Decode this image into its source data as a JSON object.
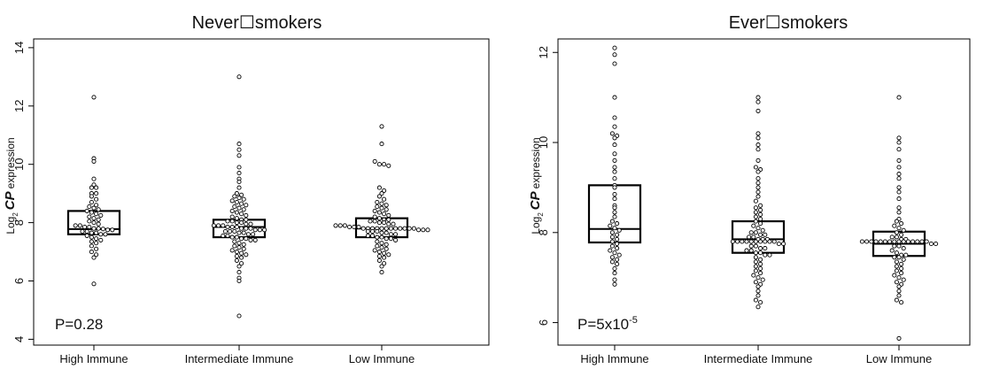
{
  "figure_name": "Beeswarm plots of gene expression by immune class",
  "colors": {
    "point_stroke": "#000000",
    "box_stroke": "#000000",
    "axis": "#000000"
  },
  "chart_data": [
    {
      "type": "scatter",
      "style": "beeswarm with box plot (median and interquartile range)",
      "title": "Never☐smokers",
      "ylabel_prefix": "Log",
      "ylabel_subscript": "2",
      "ylabel_gene": "CP",
      "ylabel_rest": "expression",
      "xlabel": "",
      "ylim": [
        3.8,
        14.3
      ],
      "yticks": [
        4,
        6,
        8,
        10,
        12,
        14
      ],
      "ytick_labels": [
        "4",
        "6",
        "8",
        "10",
        "12",
        "14"
      ],
      "categories": [
        "High Immune",
        "Intermediate Immune",
        "Low Immune"
      ],
      "pvalue_label": "P=0.28",
      "pvalue_sup": "",
      "grid": false,
      "groups": [
        {
          "name": "High Immune",
          "box": {
            "q1": 7.6,
            "median": 7.78,
            "q3": 8.4
          },
          "values": [
            12.3,
            10.2,
            10.1,
            9.5,
            9.3,
            9.2,
            9.2,
            9.0,
            9.0,
            8.9,
            8.8,
            8.7,
            8.6,
            8.55,
            8.5,
            8.45,
            8.4,
            8.35,
            8.3,
            8.25,
            8.2,
            8.15,
            8.1,
            8.05,
            8.0,
            7.95,
            7.9,
            7.9,
            7.85,
            7.85,
            7.8,
            7.8,
            7.78,
            7.75,
            7.75,
            7.7,
            7.7,
            7.65,
            7.65,
            7.6,
            7.6,
            7.55,
            7.5,
            7.45,
            7.4,
            7.35,
            7.3,
            7.2,
            7.1,
            7.0,
            6.9,
            6.8,
            5.9
          ]
        },
        {
          "name": "Intermediate Immune",
          "box": {
            "q1": 7.5,
            "median": 7.85,
            "q3": 8.1
          },
          "values": [
            13.0,
            10.7,
            10.5,
            10.3,
            9.9,
            9.7,
            9.5,
            9.4,
            9.2,
            9.0,
            8.95,
            8.9,
            8.85,
            8.8,
            8.75,
            8.7,
            8.65,
            8.6,
            8.55,
            8.5,
            8.45,
            8.4,
            8.35,
            8.3,
            8.25,
            8.2,
            8.15,
            8.1,
            8.1,
            8.05,
            8.05,
            8.0,
            8.0,
            7.95,
            7.95,
            7.9,
            7.9,
            7.9,
            7.85,
            7.85,
            7.85,
            7.8,
            7.8,
            7.8,
            7.75,
            7.75,
            7.75,
            7.7,
            7.7,
            7.7,
            7.65,
            7.65,
            7.6,
            7.6,
            7.55,
            7.55,
            7.5,
            7.5,
            7.45,
            7.45,
            7.4,
            7.4,
            7.35,
            7.3,
            7.25,
            7.2,
            7.15,
            7.1,
            7.05,
            7.0,
            6.95,
            6.9,
            6.85,
            6.8,
            6.7,
            6.6,
            6.5,
            6.3,
            6.1,
            6.0,
            4.8
          ]
        },
        {
          "name": "Low Immune",
          "box": {
            "q1": 7.5,
            "median": 7.8,
            "q3": 8.15
          },
          "values": [
            11.3,
            10.7,
            10.1,
            10.0,
            10.0,
            9.95,
            9.2,
            9.1,
            9.0,
            8.9,
            8.8,
            8.7,
            8.65,
            8.6,
            8.55,
            8.5,
            8.45,
            8.4,
            8.35,
            8.3,
            8.25,
            8.2,
            8.15,
            8.1,
            8.1,
            8.05,
            8.05,
            8.0,
            8.0,
            7.95,
            7.95,
            7.9,
            7.9,
            7.9,
            7.85,
            7.85,
            7.85,
            7.8,
            7.8,
            7.8,
            7.8,
            7.8,
            7.8,
            7.8,
            7.8,
            7.8,
            7.8,
            7.8,
            7.8,
            7.75,
            7.75,
            7.75,
            7.7,
            7.7,
            7.7,
            7.65,
            7.65,
            7.6,
            7.6,
            7.55,
            7.55,
            7.5,
            7.5,
            7.45,
            7.45,
            7.4,
            7.35,
            7.3,
            7.25,
            7.2,
            7.15,
            7.1,
            7.05,
            7.0,
            6.95,
            6.9,
            6.85,
            6.8,
            6.7,
            6.6,
            6.5,
            6.3
          ]
        }
      ]
    },
    {
      "type": "scatter",
      "style": "beeswarm with box plot (median and interquartile range)",
      "title": "Ever☐smokers",
      "ylabel_prefix": "Log",
      "ylabel_subscript": "2",
      "ylabel_gene": "CP",
      "ylabel_rest": "expression",
      "xlabel": "",
      "ylim": [
        5.5,
        12.3
      ],
      "yticks": [
        6,
        8,
        10,
        12
      ],
      "ytick_labels": [
        "6",
        "8",
        "10",
        "12"
      ],
      "categories": [
        "High Immune",
        "Intermediate Immune",
        "Low Immune"
      ],
      "pvalue_label": "P=5x10",
      "pvalue_sup": "-5",
      "grid": false,
      "groups": [
        {
          "name": "High Immune",
          "box": {
            "q1": 7.78,
            "median": 8.08,
            "q3": 9.05
          },
          "values": [
            12.1,
            11.95,
            11.75,
            11.0,
            10.55,
            10.35,
            10.2,
            10.15,
            10.1,
            9.95,
            9.75,
            9.6,
            9.45,
            9.35,
            9.2,
            9.05,
            9.0,
            8.85,
            8.75,
            8.6,
            8.55,
            8.45,
            8.35,
            8.25,
            8.2,
            8.15,
            8.1,
            8.05,
            8.0,
            7.95,
            7.9,
            7.85,
            7.8,
            7.75,
            7.7,
            7.65,
            7.6,
            7.55,
            7.5,
            7.45,
            7.4,
            7.35,
            7.3,
            7.2,
            7.1,
            6.95,
            6.85
          ]
        },
        {
          "name": "Intermediate Immune",
          "box": {
            "q1": 7.55,
            "median": 7.85,
            "q3": 8.25
          },
          "values": [
            11.0,
            10.9,
            10.7,
            10.2,
            10.1,
            9.95,
            9.85,
            9.6,
            9.45,
            9.4,
            9.35,
            9.2,
            9.1,
            9.0,
            8.9,
            8.8,
            8.7,
            8.6,
            8.55,
            8.5,
            8.45,
            8.4,
            8.35,
            8.3,
            8.25,
            8.2,
            8.15,
            8.1,
            8.05,
            8.0,
            8.0,
            7.95,
            7.95,
            7.9,
            7.9,
            7.85,
            7.85,
            7.85,
            7.8,
            7.8,
            7.8,
            7.8,
            7.8,
            7.8,
            7.8,
            7.8,
            7.8,
            7.8,
            7.75,
            7.75,
            7.7,
            7.7,
            7.65,
            7.65,
            7.6,
            7.6,
            7.55,
            7.55,
            7.5,
            7.5,
            7.45,
            7.4,
            7.35,
            7.3,
            7.25,
            7.2,
            7.15,
            7.1,
            7.05,
            7.0,
            6.95,
            6.9,
            6.85,
            6.8,
            6.7,
            6.6,
            6.5,
            6.45,
            6.35
          ]
        },
        {
          "name": "Low Immune",
          "box": {
            "q1": 7.48,
            "median": 7.75,
            "q3": 8.02
          },
          "values": [
            11.0,
            10.1,
            10.0,
            9.85,
            9.6,
            9.45,
            9.3,
            9.2,
            9.0,
            8.9,
            8.75,
            8.55,
            8.45,
            8.3,
            8.25,
            8.2,
            8.15,
            8.1,
            8.05,
            8.0,
            7.95,
            7.9,
            7.9,
            7.85,
            7.85,
            7.8,
            7.8,
            7.8,
            7.8,
            7.8,
            7.8,
            7.8,
            7.8,
            7.8,
            7.8,
            7.8,
            7.8,
            7.8,
            7.8,
            7.8,
            7.75,
            7.75,
            7.7,
            7.7,
            7.65,
            7.6,
            7.55,
            7.5,
            7.5,
            7.45,
            7.45,
            7.4,
            7.35,
            7.3,
            7.25,
            7.2,
            7.15,
            7.1,
            7.05,
            7.0,
            6.95,
            6.9,
            6.85,
            6.8,
            6.7,
            6.6,
            6.5,
            6.45,
            5.65
          ]
        }
      ]
    }
  ]
}
